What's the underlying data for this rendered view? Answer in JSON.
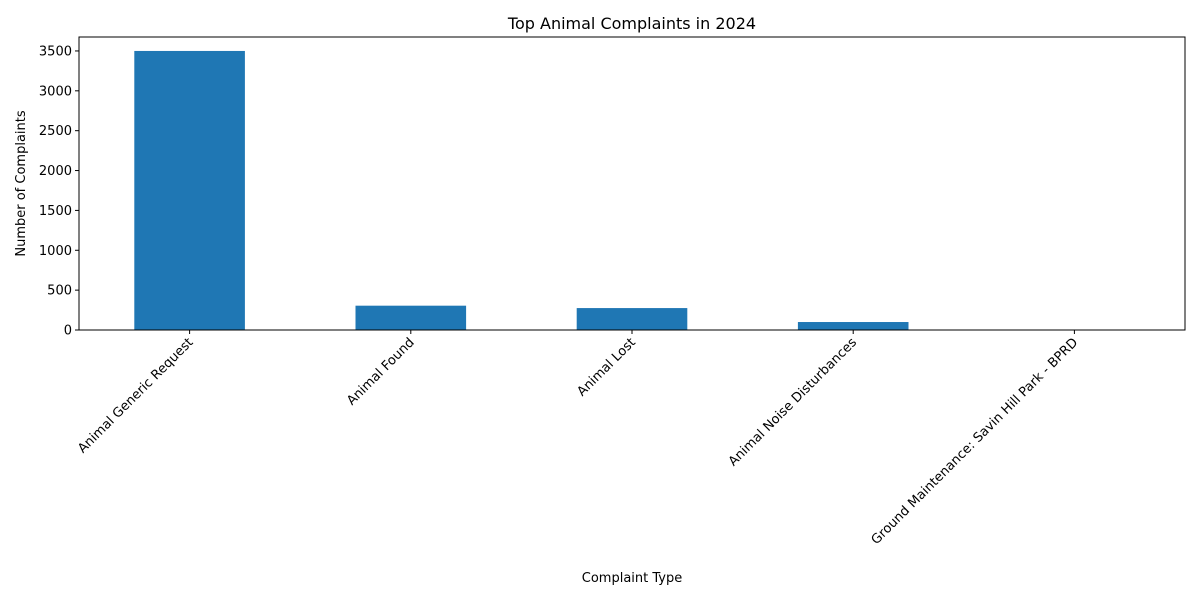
{
  "chart_data": {
    "type": "bar",
    "title": "Top Animal Complaints in 2024",
    "xlabel": "Complaint Type",
    "ylabel": "Number of Complaints",
    "categories": [
      "Animal Generic Request",
      "Animal Found",
      "Animal Lost",
      "Animal Noise Disturbances",
      "Ground Maintenance: Savin Hill Park - BPRD"
    ],
    "values": [
      3500,
      305,
      275,
      100,
      1
    ],
    "ylim": [
      0,
      3675
    ],
    "yticks": [
      0,
      500,
      1000,
      1500,
      2000,
      2500,
      3000,
      3500
    ],
    "bar_color": "#1f77b4",
    "grid": false,
    "legend": false
  }
}
